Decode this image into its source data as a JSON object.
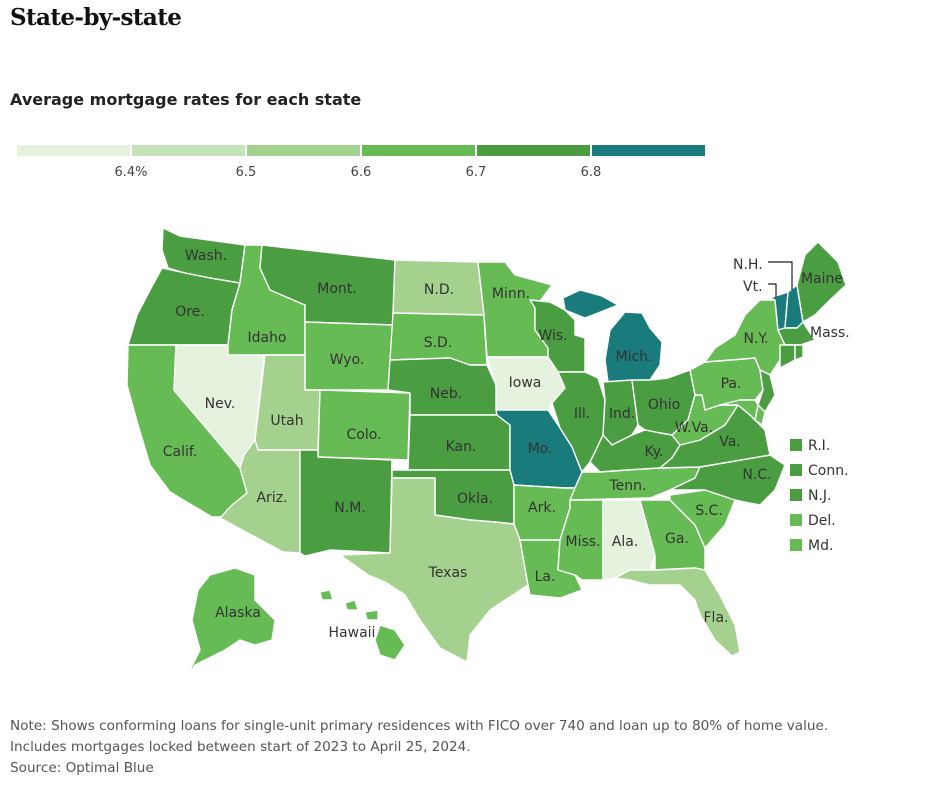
{
  "title": "State-by-state",
  "subtitle": "Average mortgage rates for each state",
  "colors": {
    "c1": "#e4f2de",
    "c2": "#c6e2b8",
    "c3": "#a4d28e",
    "c4": "#66bb55",
    "c5": "#4a9e41",
    "c6": "#1a7b7c",
    "border": "#ffffff",
    "label": "#333333"
  },
  "legend": {
    "bins": [
      {
        "color_key": "c1"
      },
      {
        "color_key": "c2"
      },
      {
        "color_key": "c3"
      },
      {
        "color_key": "c4"
      },
      {
        "color_key": "c5"
      },
      {
        "color_key": "c6"
      }
    ],
    "ticks": [
      "6.4%",
      "6.5",
      "6.6",
      "6.7",
      "6.8"
    ]
  },
  "states": {
    "WA": {
      "label": "Wash.",
      "color_key": "c5"
    },
    "OR": {
      "label": "Ore.",
      "color_key": "c5"
    },
    "CA": {
      "label": "Calif.",
      "color_key": "c4"
    },
    "NV": {
      "label": "Nev.",
      "color_key": "c1"
    },
    "ID": {
      "label": "Idaho",
      "color_key": "c4"
    },
    "MT": {
      "label": "Mont.",
      "color_key": "c5"
    },
    "WY": {
      "label": "Wyo.",
      "color_key": "c4"
    },
    "UT": {
      "label": "Utah",
      "color_key": "c3"
    },
    "AZ": {
      "label": "Ariz.",
      "color_key": "c3"
    },
    "CO": {
      "label": "Colo.",
      "color_key": "c4"
    },
    "NM": {
      "label": "N.M.",
      "color_key": "c5"
    },
    "ND": {
      "label": "N.D.",
      "color_key": "c3"
    },
    "SD": {
      "label": "S.D.",
      "color_key": "c4"
    },
    "NE": {
      "label": "Neb.",
      "color_key": "c5"
    },
    "KS": {
      "label": "Kan.",
      "color_key": "c5"
    },
    "OK": {
      "label": "Okla.",
      "color_key": "c5"
    },
    "TX": {
      "label": "Texas",
      "color_key": "c3"
    },
    "MN": {
      "label": "Minn.",
      "color_key": "c4"
    },
    "IA": {
      "label": "Iowa",
      "color_key": "c1"
    },
    "MO": {
      "label": "Mo.",
      "color_key": "c6"
    },
    "AR": {
      "label": "Ark.",
      "color_key": "c4"
    },
    "LA": {
      "label": "La.",
      "color_key": "c4"
    },
    "WI": {
      "label": "Wis.",
      "color_key": "c5"
    },
    "IL": {
      "label": "Ill.",
      "color_key": "c5"
    },
    "MI": {
      "label": "Mich.",
      "color_key": "c6"
    },
    "IN": {
      "label": "Ind.",
      "color_key": "c5"
    },
    "OH": {
      "label": "Ohio",
      "color_key": "c5"
    },
    "KY": {
      "label": "Ky.",
      "color_key": "c5"
    },
    "TN": {
      "label": "Tenn.",
      "color_key": "c4"
    },
    "MS": {
      "label": "Miss.",
      "color_key": "c4"
    },
    "AL": {
      "label": "Ala.",
      "color_key": "c1"
    },
    "GA": {
      "label": "Ga.",
      "color_key": "c4"
    },
    "FL": {
      "label": "Fla.",
      "color_key": "c3"
    },
    "SC": {
      "label": "S.C.",
      "color_key": "c4"
    },
    "NC": {
      "label": "N.C.",
      "color_key": "c5"
    },
    "VA": {
      "label": "Va.",
      "color_key": "c5"
    },
    "WV": {
      "label": "W.Va.",
      "color_key": "c4"
    },
    "PA": {
      "label": "Pa.",
      "color_key": "c4"
    },
    "NY": {
      "label": "N.Y.",
      "color_key": "c4"
    },
    "VT": {
      "label": "Vt.",
      "color_key": "c6"
    },
    "NH": {
      "label": "N.H.",
      "color_key": "c6"
    },
    "ME": {
      "label": "Maine",
      "color_key": "c5"
    },
    "MA": {
      "label": "Mass.",
      "color_key": "c5"
    },
    "RI": {
      "label": "R.I.",
      "color_key": "c5"
    },
    "CT": {
      "label": "Conn.",
      "color_key": "c5"
    },
    "NJ": {
      "label": "N.J.",
      "color_key": "c5"
    },
    "DE": {
      "label": "Del.",
      "color_key": "c4"
    },
    "MD": {
      "label": "Md.",
      "color_key": "c4"
    },
    "AK": {
      "label": "Alaska",
      "color_key": "c4"
    },
    "HI": {
      "label": "Hawaii",
      "color_key": "c4"
    }
  },
  "small_state_keys": [
    "RI",
    "CT",
    "NJ",
    "DE",
    "MD"
  ],
  "notes": [
    "Note: Shows conforming loans for single-unit primary residences with FICO over 740 and loan up to 80% of home value.",
    "Includes mortgages locked between start of 2023 to April 25, 2024.",
    "Source: Optimal Blue"
  ]
}
